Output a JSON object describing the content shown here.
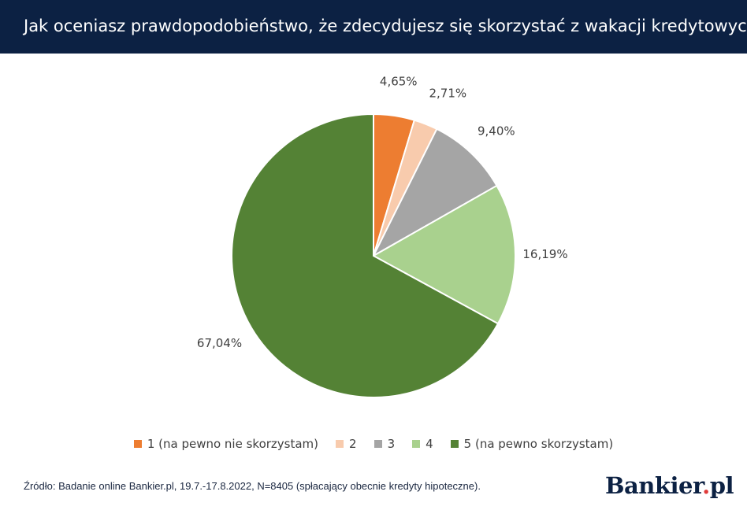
{
  "header": {
    "title": "Jak oceniasz prawdopodobieństwo, że zdecydujesz się skorzystać z wakacji kredytowych?"
  },
  "chart_data": {
    "type": "pie",
    "title": "Jak oceniasz prawdopodobieństwo, że zdecydujesz się skorzystać z wakacji kredytowych?",
    "categories": [
      "1 (na pewno nie skorzystam)",
      "2",
      "3",
      "4",
      "5 (na pewno skorzystam)"
    ],
    "values": [
      4.65,
      2.71,
      9.4,
      16.19,
      67.04
    ],
    "labels": [
      "4,65%",
      "2,71%",
      "9,40%",
      "16,19%",
      "67,04%"
    ],
    "colors": [
      "#ed7d31",
      "#f8cbad",
      "#a5a5a5",
      "#a9d18e",
      "#548235"
    ],
    "legend": "bottom"
  },
  "footer": {
    "source": "Źródło: Badanie online Bankier.pl, 19.7.-17.8.2022, N=8405 (spłacający obecnie kredyty hipoteczne).",
    "logo_main": "Bankier",
    "logo_dot": ".",
    "logo_suffix": "pl"
  }
}
